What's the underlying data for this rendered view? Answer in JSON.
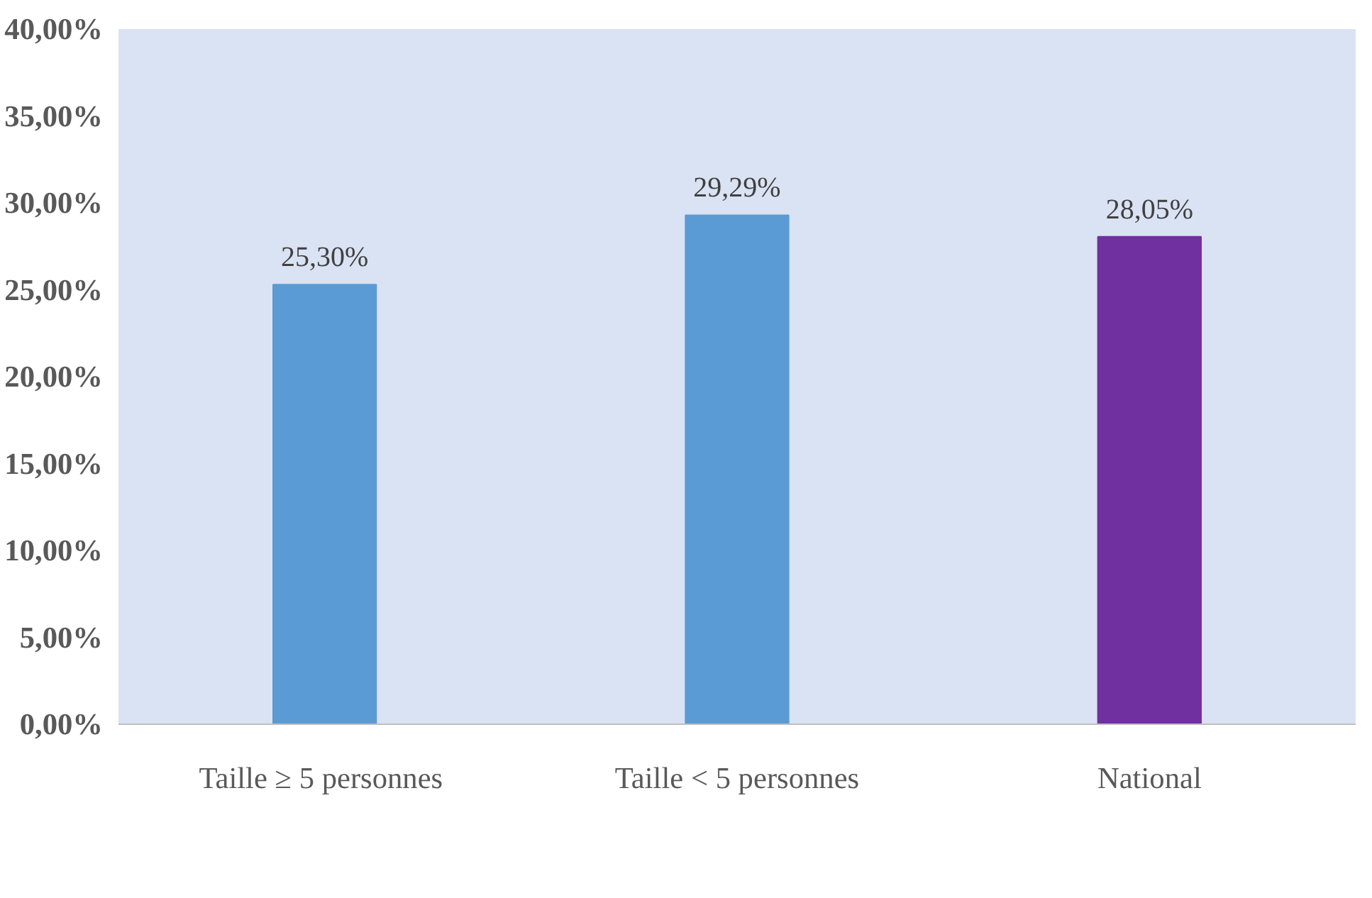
{
  "chart_data": {
    "type": "bar",
    "categories": [
      "Taille  ≥ 5 personnes",
      "Taille < 5 personnes",
      "National"
    ],
    "values": [
      25.3,
      29.29,
      28.05
    ],
    "colors": [
      "#5b9bd5",
      "#5b9bd5",
      "#7030a0"
    ],
    "value_labels": [
      "25,30%",
      "29,29%",
      "28,05%"
    ],
    "ylim": [
      0,
      40
    ],
    "yticks": [
      {
        "value": 0,
        "label": "0,00%"
      },
      {
        "value": 5,
        "label": "5,00%"
      },
      {
        "value": 10,
        "label": "10,00%"
      },
      {
        "value": 15,
        "label": "15,00%"
      },
      {
        "value": 20,
        "label": "20,00%"
      },
      {
        "value": 25,
        "label": "25,00%"
      },
      {
        "value": 30,
        "label": "30,00%"
      },
      {
        "value": 35,
        "label": "35,00%"
      },
      {
        "value": 40,
        "label": "40,00%"
      }
    ],
    "grid": false
  }
}
